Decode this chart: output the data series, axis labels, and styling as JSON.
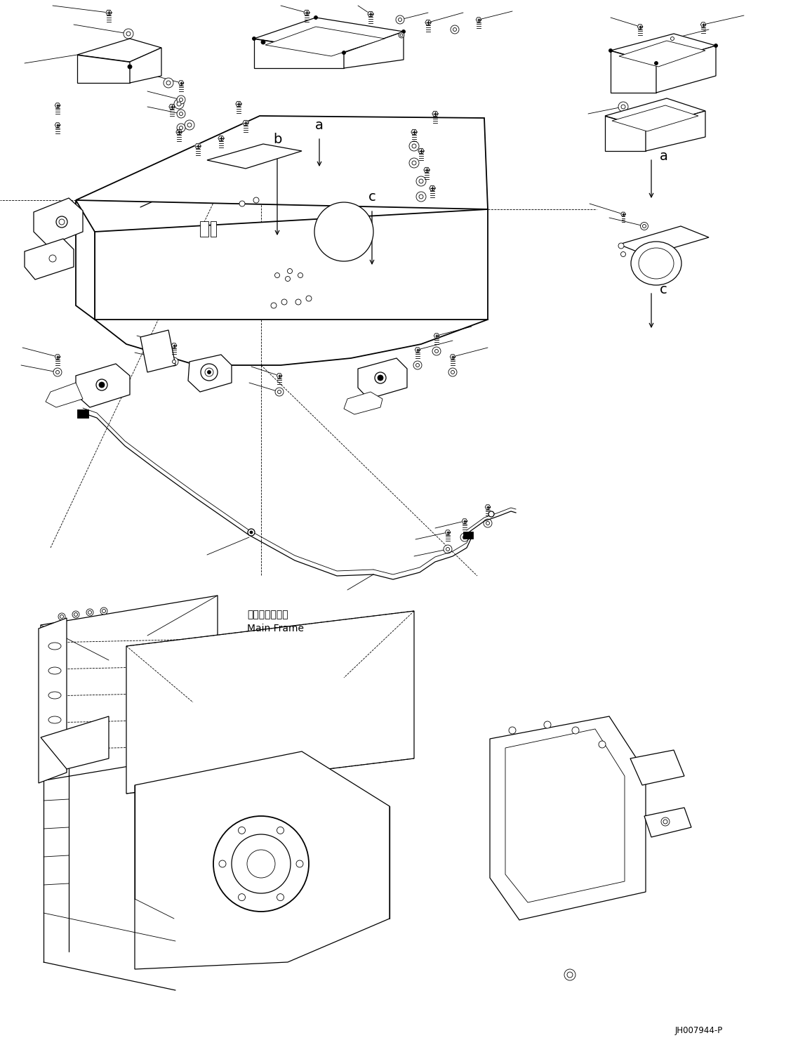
{
  "background_color": "#ffffff",
  "line_color": "#000000",
  "diagram_id": "JH007944-P",
  "main_frame_label_jp": "メインフレーム",
  "main_frame_label_en": "Main Frame",
  "figsize": [
    11.47,
    14.88
  ],
  "dpi": 100
}
